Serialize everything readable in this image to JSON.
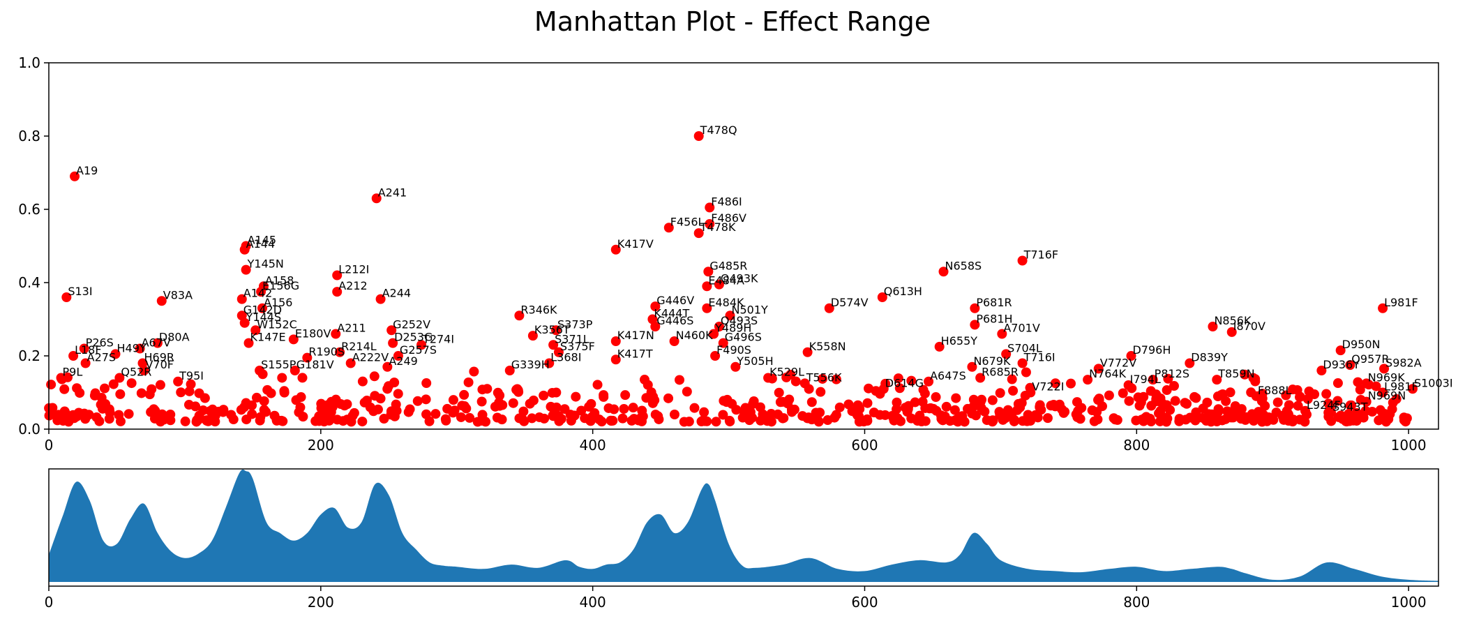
{
  "chart_data": [
    {
      "type": "scatter",
      "title": "Manhattan Plot - Effect Range",
      "xlabel": "",
      "ylabel": "",
      "xlim": [
        0,
        1022
      ],
      "ylim": [
        0,
        1.0
      ],
      "xticks": [
        "0",
        "200",
        "400",
        "600",
        "800",
        "1000"
      ],
      "yticks": [
        "0.0",
        "0.2",
        "0.4",
        "0.6",
        "0.8",
        "1.0"
      ],
      "grid": false,
      "colors": {
        "point": "#ff0000"
      },
      "points": [
        {
          "x": 19,
          "y": 0.69,
          "label": "A19"
        },
        {
          "x": 13,
          "y": 0.36,
          "label": "S13I"
        },
        {
          "x": 83,
          "y": 0.35,
          "label": "V83A"
        },
        {
          "x": 80,
          "y": 0.235,
          "label": "D80A"
        },
        {
          "x": 67,
          "y": 0.22,
          "label": "A67V"
        },
        {
          "x": 49,
          "y": 0.205,
          "label": "H49Y"
        },
        {
          "x": 26,
          "y": 0.22,
          "label": "P26S"
        },
        {
          "x": 18,
          "y": 0.2,
          "label": "L18F"
        },
        {
          "x": 69,
          "y": 0.18,
          "label": "H69R"
        },
        {
          "x": 27,
          "y": 0.18,
          "label": "A27S"
        },
        {
          "x": 70,
          "y": 0.16,
          "label": "V70F"
        },
        {
          "x": 52,
          "y": 0.14,
          "label": "Q52R"
        },
        {
          "x": 9,
          "y": 0.14,
          "label": "P9L"
        },
        {
          "x": 95,
          "y": 0.13,
          "label": "T95I"
        },
        {
          "x": 145,
          "y": 0.5,
          "label": "A145"
        },
        {
          "x": 144,
          "y": 0.49,
          "label": "A144"
        },
        {
          "x": 145,
          "y": 0.435,
          "label": "Y145N"
        },
        {
          "x": 158,
          "y": 0.39,
          "label": "A158"
        },
        {
          "x": 156,
          "y": 0.375,
          "label": "E156G"
        },
        {
          "x": 142,
          "y": 0.355,
          "label": "A142"
        },
        {
          "x": 157,
          "y": 0.33,
          "label": "A156"
        },
        {
          "x": 142,
          "y": 0.31,
          "label": "G142D"
        },
        {
          "x": 144,
          "y": 0.29,
          "label": "Y144S"
        },
        {
          "x": 152,
          "y": 0.27,
          "label": "W152C"
        },
        {
          "x": 147,
          "y": 0.235,
          "label": "K147E"
        },
        {
          "x": 180,
          "y": 0.245,
          "label": "E180V"
        },
        {
          "x": 155,
          "y": 0.16,
          "label": "S155P"
        },
        {
          "x": 190,
          "y": 0.195,
          "label": "R190S"
        },
        {
          "x": 181,
          "y": 0.16,
          "label": "G181V"
        },
        {
          "x": 212,
          "y": 0.42,
          "label": "L212I"
        },
        {
          "x": 212,
          "y": 0.375,
          "label": "A212"
        },
        {
          "x": 211,
          "y": 0.26,
          "label": "A211"
        },
        {
          "x": 241,
          "y": 0.63,
          "label": "A241"
        },
        {
          "x": 244,
          "y": 0.355,
          "label": "A244"
        },
        {
          "x": 252,
          "y": 0.27,
          "label": "G252V"
        },
        {
          "x": 253,
          "y": 0.235,
          "label": "D253G"
        },
        {
          "x": 274,
          "y": 0.23,
          "label": "T274I"
        },
        {
          "x": 214,
          "y": 0.21,
          "label": "R214L"
        },
        {
          "x": 257,
          "y": 0.2,
          "label": "G257S"
        },
        {
          "x": 222,
          "y": 0.18,
          "label": "A222V"
        },
        {
          "x": 249,
          "y": 0.17,
          "label": "A249"
        },
        {
          "x": 346,
          "y": 0.31,
          "label": "R346K"
        },
        {
          "x": 373,
          "y": 0.27,
          "label": "S373P"
        },
        {
          "x": 356,
          "y": 0.255,
          "label": "K356T"
        },
        {
          "x": 371,
          "y": 0.23,
          "label": "S371L"
        },
        {
          "x": 375,
          "y": 0.21,
          "label": "S375F"
        },
        {
          "x": 368,
          "y": 0.18,
          "label": "L368I"
        },
        {
          "x": 339,
          "y": 0.16,
          "label": "G339H"
        },
        {
          "x": 417,
          "y": 0.49,
          "label": "K417V"
        },
        {
          "x": 417,
          "y": 0.24,
          "label": "K417N"
        },
        {
          "x": 417,
          "y": 0.19,
          "label": "K417T"
        },
        {
          "x": 446,
          "y": 0.335,
          "label": "G446V"
        },
        {
          "x": 444,
          "y": 0.3,
          "label": "K444T"
        },
        {
          "x": 446,
          "y": 0.28,
          "label": "G446S"
        },
        {
          "x": 460,
          "y": 0.24,
          "label": "N460K"
        },
        {
          "x": 456,
          "y": 0.55,
          "label": "F456L"
        },
        {
          "x": 478,
          "y": 0.8,
          "label": "T478Q"
        },
        {
          "x": 486,
          "y": 0.605,
          "label": "F486I"
        },
        {
          "x": 486,
          "y": 0.56,
          "label": "F486V"
        },
        {
          "x": 478,
          "y": 0.535,
          "label": "T478K"
        },
        {
          "x": 485,
          "y": 0.43,
          "label": "G485R"
        },
        {
          "x": 493,
          "y": 0.395,
          "label": "Q493K"
        },
        {
          "x": 484,
          "y": 0.39,
          "label": "E484A"
        },
        {
          "x": 484,
          "y": 0.33,
          "label": "E484K"
        },
        {
          "x": 501,
          "y": 0.31,
          "label": "N501Y"
        },
        {
          "x": 493,
          "y": 0.28,
          "label": "Q493S"
        },
        {
          "x": 489,
          "y": 0.26,
          "label": "Y489H"
        },
        {
          "x": 496,
          "y": 0.235,
          "label": "G496S"
        },
        {
          "x": 490,
          "y": 0.2,
          "label": "F490S"
        },
        {
          "x": 505,
          "y": 0.17,
          "label": "Y505H"
        },
        {
          "x": 529,
          "y": 0.14,
          "label": "K529L"
        },
        {
          "x": 558,
          "y": 0.21,
          "label": "K558N"
        },
        {
          "x": 556,
          "y": 0.125,
          "label": "T556K"
        },
        {
          "x": 574,
          "y": 0.33,
          "label": "D574V"
        },
        {
          "x": 613,
          "y": 0.36,
          "label": "Q613H"
        },
        {
          "x": 614,
          "y": 0.11,
          "label": "D614G"
        },
        {
          "x": 658,
          "y": 0.43,
          "label": "N658S"
        },
        {
          "x": 655,
          "y": 0.225,
          "label": "H655Y"
        },
        {
          "x": 681,
          "y": 0.33,
          "label": "P681R"
        },
        {
          "x": 681,
          "y": 0.285,
          "label": "P681H"
        },
        {
          "x": 701,
          "y": 0.26,
          "label": "A701V"
        },
        {
          "x": 704,
          "y": 0.205,
          "label": "S704L"
        },
        {
          "x": 679,
          "y": 0.17,
          "label": "N679K"
        },
        {
          "x": 716,
          "y": 0.46,
          "label": "T716F"
        },
        {
          "x": 716,
          "y": 0.18,
          "label": "T716I"
        },
        {
          "x": 647,
          "y": 0.13,
          "label": "A647S"
        },
        {
          "x": 685,
          "y": 0.14,
          "label": "R685R"
        },
        {
          "x": 722,
          "y": 0.1,
          "label": "V722I"
        },
        {
          "x": 772,
          "y": 0.165,
          "label": "V772V"
        },
        {
          "x": 764,
          "y": 0.135,
          "label": "N764K"
        },
        {
          "x": 796,
          "y": 0.2,
          "label": "D796H"
        },
        {
          "x": 812,
          "y": 0.135,
          "label": "P812S"
        },
        {
          "x": 794,
          "y": 0.12,
          "label": "I794L"
        },
        {
          "x": 839,
          "y": 0.18,
          "label": "D839Y"
        },
        {
          "x": 856,
          "y": 0.28,
          "label": "N856K"
        },
        {
          "x": 870,
          "y": 0.265,
          "label": "I870V"
        },
        {
          "x": 859,
          "y": 0.135,
          "label": "T859N"
        },
        {
          "x": 888,
          "y": 0.09,
          "label": "F888L"
        },
        {
          "x": 950,
          "y": 0.215,
          "label": "D950N"
        },
        {
          "x": 957,
          "y": 0.175,
          "label": "Q957R"
        },
        {
          "x": 982,
          "y": 0.165,
          "label": "S982A"
        },
        {
          "x": 936,
          "y": 0.16,
          "label": "D936Y"
        },
        {
          "x": 969,
          "y": 0.125,
          "label": "N969K"
        },
        {
          "x": 981,
          "y": 0.33,
          "label": "L981F"
        },
        {
          "x": 1003,
          "y": 0.11,
          "label": "S1003I"
        },
        {
          "x": 981,
          "y": 0.1,
          "label": "L981F"
        },
        {
          "x": 969,
          "y": 0.075,
          "label": "N969N"
        },
        {
          "x": 943,
          "y": 0.045,
          "label": "S943T"
        },
        {
          "x": 924,
          "y": 0.05,
          "label": "L924F"
        }
      ]
    },
    {
      "type": "area",
      "title": "",
      "xlim": [
        0,
        1022
      ],
      "xticks": [
        "0",
        "200",
        "400",
        "600",
        "800",
        "1000"
      ],
      "colors": {
        "fill": "#1f77b4"
      },
      "x": [
        0,
        10,
        20,
        30,
        40,
        50,
        60,
        70,
        80,
        90,
        100,
        110,
        120,
        130,
        140,
        145,
        150,
        160,
        170,
        180,
        190,
        200,
        210,
        220,
        230,
        240,
        250,
        260,
        270,
        280,
        290,
        300,
        320,
        340,
        360,
        380,
        390,
        400,
        410,
        420,
        430,
        440,
        450,
        460,
        470,
        480,
        485,
        490,
        500,
        510,
        520,
        540,
        560,
        580,
        600,
        620,
        640,
        660,
        670,
        680,
        690,
        700,
        720,
        740,
        760,
        780,
        800,
        820,
        840,
        860,
        870,
        880,
        900,
        920,
        940,
        960,
        980,
        1000,
        1022
      ],
      "values": [
        0.25,
        0.6,
        0.92,
        0.75,
        0.38,
        0.35,
        0.58,
        0.72,
        0.45,
        0.28,
        0.22,
        0.26,
        0.38,
        0.68,
        1.0,
        1.02,
        0.95,
        0.55,
        0.45,
        0.38,
        0.45,
        0.62,
        0.68,
        0.5,
        0.55,
        0.9,
        0.8,
        0.45,
        0.3,
        0.18,
        0.15,
        0.14,
        0.12,
        0.16,
        0.13,
        0.2,
        0.14,
        0.12,
        0.16,
        0.18,
        0.3,
        0.55,
        0.62,
        0.45,
        0.55,
        0.85,
        0.9,
        0.75,
        0.35,
        0.15,
        0.13,
        0.16,
        0.22,
        0.12,
        0.1,
        0.16,
        0.2,
        0.18,
        0.25,
        0.45,
        0.35,
        0.2,
        0.12,
        0.1,
        0.09,
        0.12,
        0.14,
        0.1,
        0.12,
        0.14,
        0.12,
        0.08,
        0.02,
        0.05,
        0.18,
        0.12,
        0.05,
        0.02,
        0.01
      ]
    }
  ]
}
